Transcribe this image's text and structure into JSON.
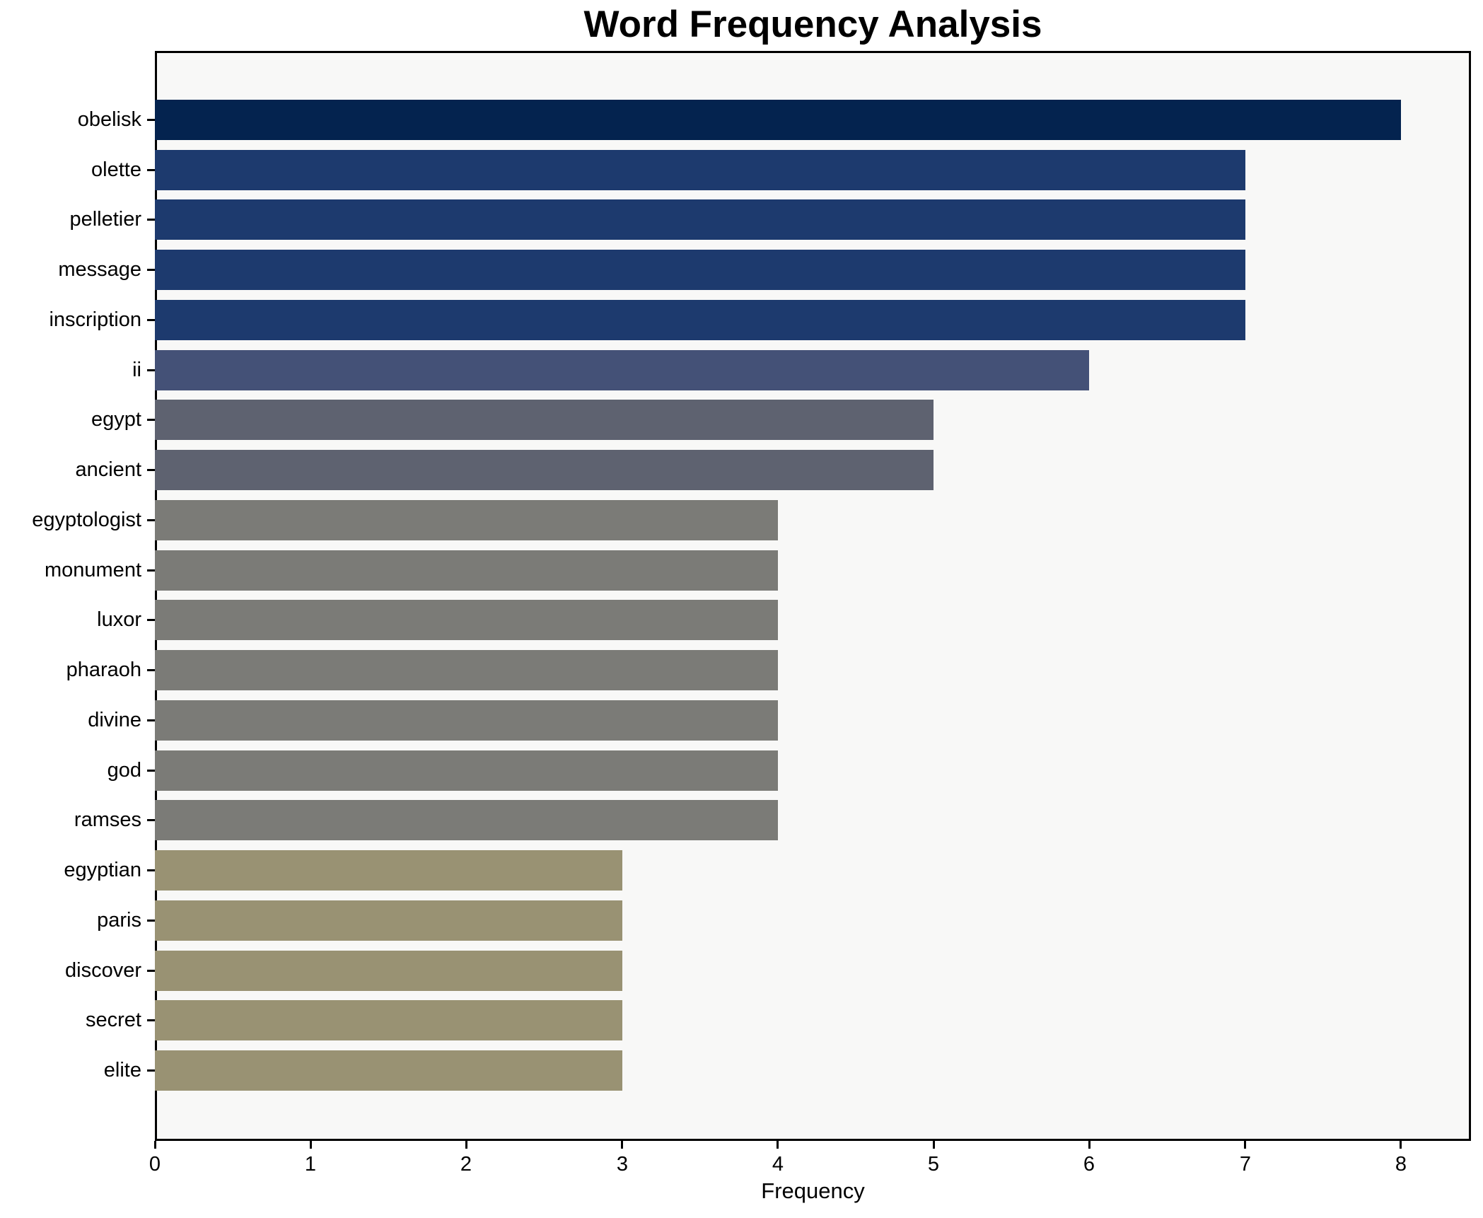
{
  "title": "Word Frequency Analysis",
  "axis": {
    "xlabel": "Frequency"
  },
  "colors": {
    "figure_background": "#ffffff",
    "plot_background": "#f8f8f7",
    "spine": "#000000",
    "text": "#000000"
  },
  "chart_data": {
    "type": "bar",
    "orientation": "horizontal",
    "title": "Word Frequency Analysis",
    "xlabel": "Frequency",
    "ylabel": "",
    "xlim": [
      0,
      8.45
    ],
    "x_ticks": [
      0,
      1,
      2,
      3,
      4,
      5,
      6,
      7,
      8
    ],
    "grid": false,
    "legend": "none",
    "categories": [
      "obelisk",
      "olette",
      "pelletier",
      "message",
      "inscription",
      "ii",
      "egypt",
      "ancient",
      "egyptologist",
      "monument",
      "luxor",
      "pharaoh",
      "divine",
      "god",
      "ramses",
      "egyptian",
      "paris",
      "discover",
      "secret",
      "elite"
    ],
    "values": [
      8,
      7,
      7,
      7,
      7,
      6,
      5,
      5,
      4,
      4,
      4,
      4,
      4,
      4,
      4,
      3,
      3,
      3,
      3,
      3
    ],
    "bar_colors": [
      "#04234f",
      "#1d3a6e",
      "#1d3a6e",
      "#1d3a6e",
      "#1d3a6e",
      "#445177",
      "#5e6270",
      "#5e6270",
      "#7b7b77",
      "#7b7b77",
      "#7b7b77",
      "#7b7b77",
      "#7b7b77",
      "#7b7b77",
      "#7b7b77",
      "#999273",
      "#999273",
      "#999273",
      "#999273",
      "#999273"
    ]
  }
}
